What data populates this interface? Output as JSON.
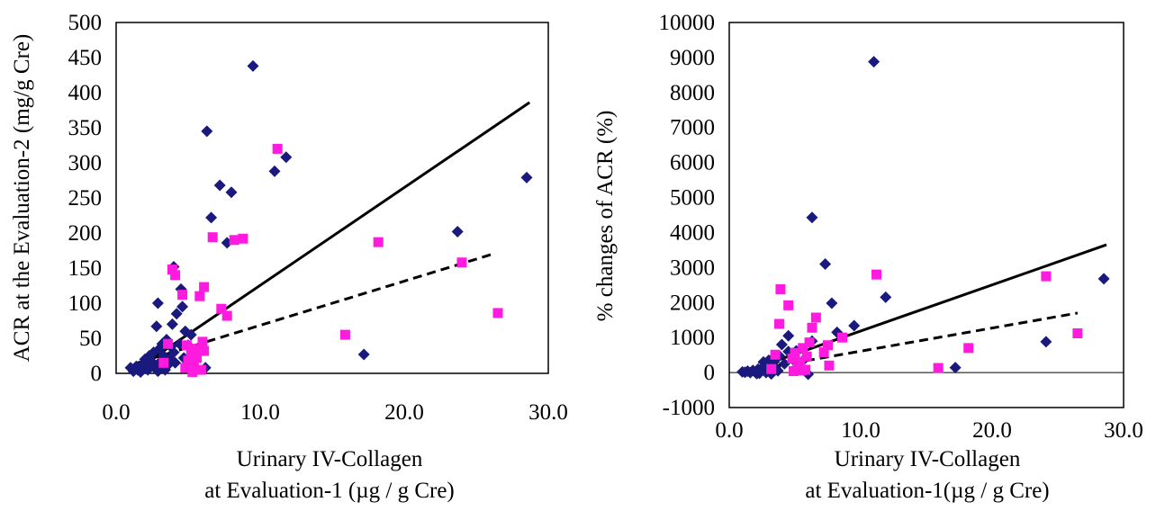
{
  "chart_data": [
    {
      "type": "scatter",
      "title": "",
      "xlabel": [
        "Urinary IV-Collagen",
        "at Evaluation-1 (µg / g Cre)"
      ],
      "ylabel": "ACR at the Evaluation-2 (mg/g Cre)",
      "xlim": [
        0,
        30
      ],
      "ylim": [
        0,
        500
      ],
      "xticks": [
        "0.0",
        "10.0",
        "20.0",
        "30.0"
      ],
      "yticks": [
        "0",
        "50",
        "100",
        "150",
        "200",
        "250",
        "300",
        "350",
        "400",
        "450",
        "500"
      ],
      "grid": false,
      "legend": "none",
      "series": [
        {
          "marker": "diamond",
          "color": "#1a1a7e",
          "points": [
            [
              9.5,
              438
            ],
            [
              6.3,
              345
            ],
            [
              11.8,
              308
            ],
            [
              11.0,
              288
            ],
            [
              7.2,
              268
            ],
            [
              8.0,
              258
            ],
            [
              6.6,
              222
            ],
            [
              7.7,
              186
            ],
            [
              4.0,
              152
            ],
            [
              4.5,
              120
            ],
            [
              2.9,
              100
            ],
            [
              4.2,
              85
            ],
            [
              4.6,
              95
            ],
            [
              2.8,
              67
            ],
            [
              3.9,
              70
            ],
            [
              4.8,
              60
            ],
            [
              3.5,
              48
            ],
            [
              3.2,
              42
            ],
            [
              4.4,
              42
            ],
            [
              3.8,
              38
            ],
            [
              5.2,
              55
            ],
            [
              5.0,
              40
            ],
            [
              3.0,
              35
            ],
            [
              4.0,
              30
            ],
            [
              3.3,
              25
            ],
            [
              2.6,
              30
            ],
            [
              2.0,
              20
            ],
            [
              2.4,
              18
            ],
            [
              1.8,
              12
            ],
            [
              1.4,
              10
            ],
            [
              1.0,
              8
            ],
            [
              1.5,
              5
            ],
            [
              2.2,
              5
            ],
            [
              2.7,
              8
            ],
            [
              3.1,
              10
            ],
            [
              3.6,
              12
            ],
            [
              2.9,
              3
            ],
            [
              3.4,
              5
            ],
            [
              1.2,
              3
            ],
            [
              1.7,
              2
            ],
            [
              2.5,
              12
            ],
            [
              2.1,
              8
            ],
            [
              4.1,
              15
            ],
            [
              4.7,
              22
            ],
            [
              3.7,
              20
            ],
            [
              3.0,
              15
            ],
            [
              2.3,
              25
            ],
            [
              6.2,
              8
            ],
            [
              17.2,
              27
            ],
            [
              23.7,
              202
            ],
            [
              28.5,
              279
            ]
          ]
        },
        {
          "marker": "square",
          "color": "#ff1ae0",
          "points": [
            [
              11.2,
              320
            ],
            [
              6.7,
              194
            ],
            [
              8.8,
              192
            ],
            [
              8.2,
              190
            ],
            [
              18.2,
              187
            ],
            [
              24.0,
              158
            ],
            [
              3.9,
              148
            ],
            [
              4.1,
              140
            ],
            [
              6.1,
              123
            ],
            [
              4.6,
              112
            ],
            [
              5.8,
              110
            ],
            [
              7.3,
              92
            ],
            [
              7.7,
              82
            ],
            [
              26.5,
              86
            ],
            [
              15.9,
              55
            ],
            [
              6.0,
              45
            ],
            [
              3.6,
              42
            ],
            [
              4.9,
              40
            ],
            [
              5.5,
              35
            ],
            [
              6.1,
              32
            ],
            [
              5.2,
              28
            ],
            [
              5.6,
              22
            ],
            [
              5.0,
              18
            ],
            [
              3.3,
              15
            ],
            [
              5.4,
              10
            ],
            [
              4.8,
              8
            ],
            [
              5.9,
              5
            ],
            [
              5.3,
              2
            ]
          ]
        }
      ],
      "lines": [
        {
          "style": "solid",
          "color": "#000000",
          "x": [
            1.0,
            28.7
          ],
          "y": [
            0,
            386
          ]
        },
        {
          "style": "dashed",
          "color": "#000000",
          "x": [
            1.5,
            26.3
          ],
          "y": [
            15,
            171
          ]
        }
      ]
    },
    {
      "type": "scatter",
      "title": "",
      "xlabel": [
        "Urinary IV-Collagen",
        "at Evaluation-1(µg / g Cre)"
      ],
      "ylabel": "% changes of ACR (%)",
      "xlim": [
        0,
        30
      ],
      "ylim": [
        -1000,
        10000
      ],
      "xticks": [
        "0.0",
        "10.0",
        "20.0",
        "30.0"
      ],
      "yticks": [
        "-1000",
        "0",
        "1000",
        "2000",
        "3000",
        "4000",
        "5000",
        "6000",
        "7000",
        "8000",
        "9000",
        "10000"
      ],
      "grid": false,
      "legend": "none",
      "series": [
        {
          "marker": "diamond",
          "color": "#1a1a7e",
          "points": [
            [
              11.0,
              8880
            ],
            [
              6.3,
              4430
            ],
            [
              7.3,
              3100
            ],
            [
              11.9,
              2150
            ],
            [
              7.8,
              1980
            ],
            [
              28.5,
              2680
            ],
            [
              9.5,
              1340
            ],
            [
              8.2,
              1150
            ],
            [
              4.5,
              1050
            ],
            [
              6.3,
              900
            ],
            [
              4.0,
              800
            ],
            [
              24.1,
              880
            ],
            [
              17.2,
              140
            ],
            [
              5.1,
              620
            ],
            [
              4.8,
              550
            ],
            [
              3.8,
              480
            ],
            [
              3.3,
              400
            ],
            [
              3.0,
              350
            ],
            [
              2.6,
              300
            ],
            [
              2.9,
              200
            ],
            [
              3.5,
              150
            ],
            [
              3.1,
              120
            ],
            [
              2.2,
              100
            ],
            [
              2.5,
              80
            ],
            [
              1.8,
              60
            ],
            [
              1.4,
              40
            ],
            [
              1.0,
              20
            ],
            [
              1.6,
              0
            ],
            [
              2.0,
              0
            ],
            [
              2.3,
              -20
            ],
            [
              2.8,
              0
            ],
            [
              3.2,
              -40
            ],
            [
              1.2,
              10
            ],
            [
              3.7,
              50
            ],
            [
              4.2,
              250
            ],
            [
              4.5,
              600
            ],
            [
              3.4,
              300
            ],
            [
              2.7,
              150
            ],
            [
              5.5,
              300
            ],
            [
              6.0,
              -50
            ],
            [
              5.0,
              100
            ],
            [
              2.1,
              -30
            ]
          ]
        },
        {
          "marker": "square",
          "color": "#ff1ae0",
          "points": [
            [
              11.2,
              2800
            ],
            [
              24.1,
              2750
            ],
            [
              3.9,
              2380
            ],
            [
              4.5,
              1920
            ],
            [
              6.6,
              1570
            ],
            [
              3.8,
              1390
            ],
            [
              6.3,
              1280
            ],
            [
              26.5,
              1120
            ],
            [
              8.6,
              1000
            ],
            [
              6.1,
              860
            ],
            [
              7.5,
              780
            ],
            [
              18.2,
              700
            ],
            [
              5.6,
              700
            ],
            [
              7.2,
              580
            ],
            [
              5.0,
              560
            ],
            [
              3.5,
              510
            ],
            [
              5.9,
              460
            ],
            [
              4.8,
              400
            ],
            [
              5.4,
              300
            ],
            [
              7.6,
              200
            ],
            [
              5.2,
              180
            ],
            [
              15.9,
              130
            ],
            [
              3.2,
              100
            ],
            [
              5.8,
              80
            ],
            [
              5.5,
              60
            ],
            [
              4.9,
              40
            ]
          ]
        }
      ],
      "lines": [
        {
          "style": "solid",
          "color": "#000000",
          "x": [
            1.0,
            28.7
          ],
          "y": [
            0,
            3650
          ]
        },
        {
          "style": "dashed",
          "color": "#000000",
          "x": [
            1.5,
            26.5
          ],
          "y": [
            50,
            1700
          ]
        }
      ]
    }
  ]
}
